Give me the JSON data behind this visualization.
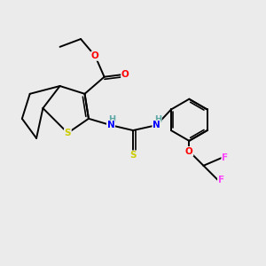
{
  "bg_color": "#ebebeb",
  "atom_colors": {
    "S": "#cccc00",
    "O": "#ff0000",
    "N": "#0000ff",
    "H": "#5fa8a8",
    "F": "#ff44ff",
    "C": "#000000"
  },
  "bond_color": "#000000",
  "lw": 1.4
}
